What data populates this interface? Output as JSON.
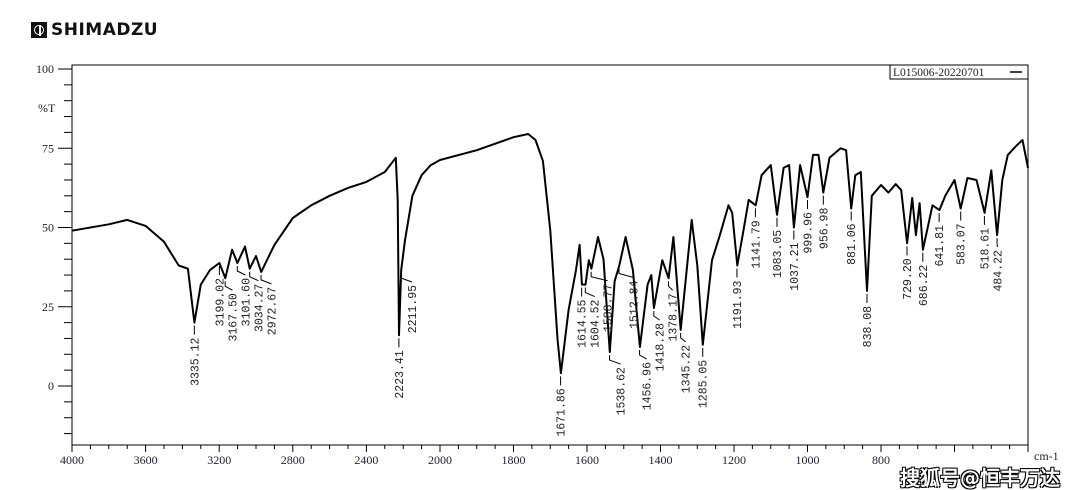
{
  "brand": "SHIMADZU",
  "watermark": "搜狐号@恒丰万达",
  "chart_data": {
    "type": "line",
    "title": "",
    "legend": {
      "label": "L015006-20220701",
      "placement": "top-right"
    },
    "xlabel": "cm-1",
    "ylabel": "%T",
    "xlim": [
      4000,
      400
    ],
    "x_scale_break": 2000,
    "ylim": [
      -18.6,
      100
    ],
    "x_ticks": [
      4000,
      3600,
      3200,
      2800,
      2400,
      2000,
      1800,
      1600,
      1400,
      1200,
      1000,
      800
    ],
    "y_ticks": [
      100,
      75,
      50,
      25,
      0
    ],
    "grid": false,
    "series": [
      {
        "name": "L015006-20220701",
        "x": [
          4000,
          3800,
          3700,
          3600,
          3500,
          3420,
          3370,
          3335,
          3300,
          3250,
          3199,
          3167,
          3130,
          3101,
          3060,
          3034,
          3000,
          2972,
          2900,
          2800,
          2700,
          2600,
          2500,
          2400,
          2300,
          2240,
          2230,
          2223,
          2211,
          2190,
          2150,
          2100,
          2050,
          2000,
          1900,
          1800,
          1760,
          1740,
          1720,
          1700,
          1680,
          1671,
          1650,
          1630,
          1620,
          1614,
          1604,
          1595,
          1588,
          1570,
          1555,
          1538,
          1525,
          1512,
          1495,
          1475,
          1456,
          1435,
          1425,
          1418,
          1395,
          1378,
          1365,
          1345,
          1315,
          1300,
          1285,
          1260,
          1240,
          1215,
          1205,
          1191,
          1175,
          1160,
          1141,
          1125,
          1100,
          1083,
          1065,
          1050,
          1037,
          1020,
          1000,
          985,
          970,
          957,
          940,
          910,
          895,
          881,
          870,
          855,
          838,
          825,
          800,
          780,
          760,
          745,
          729,
          715,
          705,
          695,
          686,
          660,
          641,
          625,
          600,
          583,
          565,
          540,
          518,
          500,
          484,
          470,
          455,
          430,
          415,
          400
        ],
        "y": [
          49,
          51,
          52.4,
          50.5,
          45.5,
          38,
          37,
          20,
          32,
          36.6,
          38.8,
          34,
          43,
          38.8,
          44,
          37,
          41,
          36,
          44.5,
          53,
          57,
          60,
          62.5,
          64.4,
          67.5,
          72,
          58.7,
          16,
          36.6,
          46,
          60,
          66.5,
          69.7,
          71.3,
          74.4,
          78.5,
          79.5,
          77.6,
          71,
          49,
          14.5,
          4,
          24,
          36.6,
          44.5,
          32,
          32,
          39.7,
          37,
          47,
          40,
          10.7,
          33,
          38,
          47,
          36.6,
          12.3,
          32,
          35,
          24.6,
          39.7,
          34,
          47,
          17.7,
          52.4,
          38,
          13,
          39.7,
          47,
          57,
          54.6,
          38,
          48.6,
          58.7,
          57,
          66.5,
          69.7,
          54,
          68.8,
          69.7,
          50,
          69.7,
          59.6,
          72.9,
          72.9,
          61,
          72,
          75,
          74.4,
          56,
          66.5,
          67.5,
          30,
          60,
          63.4,
          61,
          63.7,
          61.8,
          45,
          59.3,
          47.6,
          57.7,
          43,
          57,
          55.5,
          60,
          65,
          56,
          65.6,
          65,
          54.6,
          68,
          47.6,
          65,
          72.9,
          76,
          77.6,
          68.8
        ]
      }
    ],
    "peaks": [
      {
        "wn": 3335.12,
        "t": 20,
        "label": "3335.12"
      },
      {
        "wn": 3199.02,
        "t": 38.8,
        "label": "3199.02"
      },
      {
        "wn": 3167.5,
        "t": 34,
        "label": "3167.50"
      },
      {
        "wn": 3101.6,
        "t": 38.8,
        "label": "3101.60"
      },
      {
        "wn": 3034.27,
        "t": 37,
        "label": "3034.27"
      },
      {
        "wn": 2972.67,
        "t": 36,
        "label": "2972.67"
      },
      {
        "wn": 2223.41,
        "t": 16,
        "label": "2223.41"
      },
      {
        "wn": 2211.95,
        "t": 36.6,
        "label": "2211.95"
      },
      {
        "wn": 1671.86,
        "t": 4,
        "label": "1671.86"
      },
      {
        "wn": 1614.55,
        "t": 32,
        "label": "1614.55"
      },
      {
        "wn": 1604.52,
        "t": 32,
        "label": "1604.52"
      },
      {
        "wn": 1588.77,
        "t": 37,
        "label": "1588.77"
      },
      {
        "wn": 1538.62,
        "t": 10.7,
        "label": "1538.62"
      },
      {
        "wn": 1512.84,
        "t": 38,
        "label": "1512.84"
      },
      {
        "wn": 1456.96,
        "t": 12.3,
        "label": "1456.96"
      },
      {
        "wn": 1418.28,
        "t": 24.6,
        "label": "1418.28"
      },
      {
        "wn": 1378.17,
        "t": 34,
        "label": "1378.17"
      },
      {
        "wn": 1345.22,
        "t": 17.7,
        "label": "1345.22"
      },
      {
        "wn": 1285.05,
        "t": 13,
        "label": "1285.05"
      },
      {
        "wn": 1191.93,
        "t": 38,
        "label": "1191.93"
      },
      {
        "wn": 1141.79,
        "t": 57,
        "label": "1141.79"
      },
      {
        "wn": 1083.05,
        "t": 54,
        "label": "1083.05"
      },
      {
        "wn": 1037.21,
        "t": 50,
        "label": "1037.21"
      },
      {
        "wn": 999.96,
        "t": 59.6,
        "label": "999.96"
      },
      {
        "wn": 956.98,
        "t": 61,
        "label": "956.98"
      },
      {
        "wn": 881.06,
        "t": 56,
        "label": "881.06"
      },
      {
        "wn": 838.08,
        "t": 30,
        "label": "838.08"
      },
      {
        "wn": 729.2,
        "t": 45,
        "label": "729.20"
      },
      {
        "wn": 686.22,
        "t": 43,
        "label": "686.22"
      },
      {
        "wn": 641.81,
        "t": 55.5,
        "label": "641.81"
      },
      {
        "wn": 583.07,
        "t": 56,
        "label": "583.07"
      },
      {
        "wn": 518.61,
        "t": 54.6,
        "label": "518.61"
      },
      {
        "wn": 484.22,
        "t": 47.6,
        "label": "484.22"
      }
    ]
  }
}
